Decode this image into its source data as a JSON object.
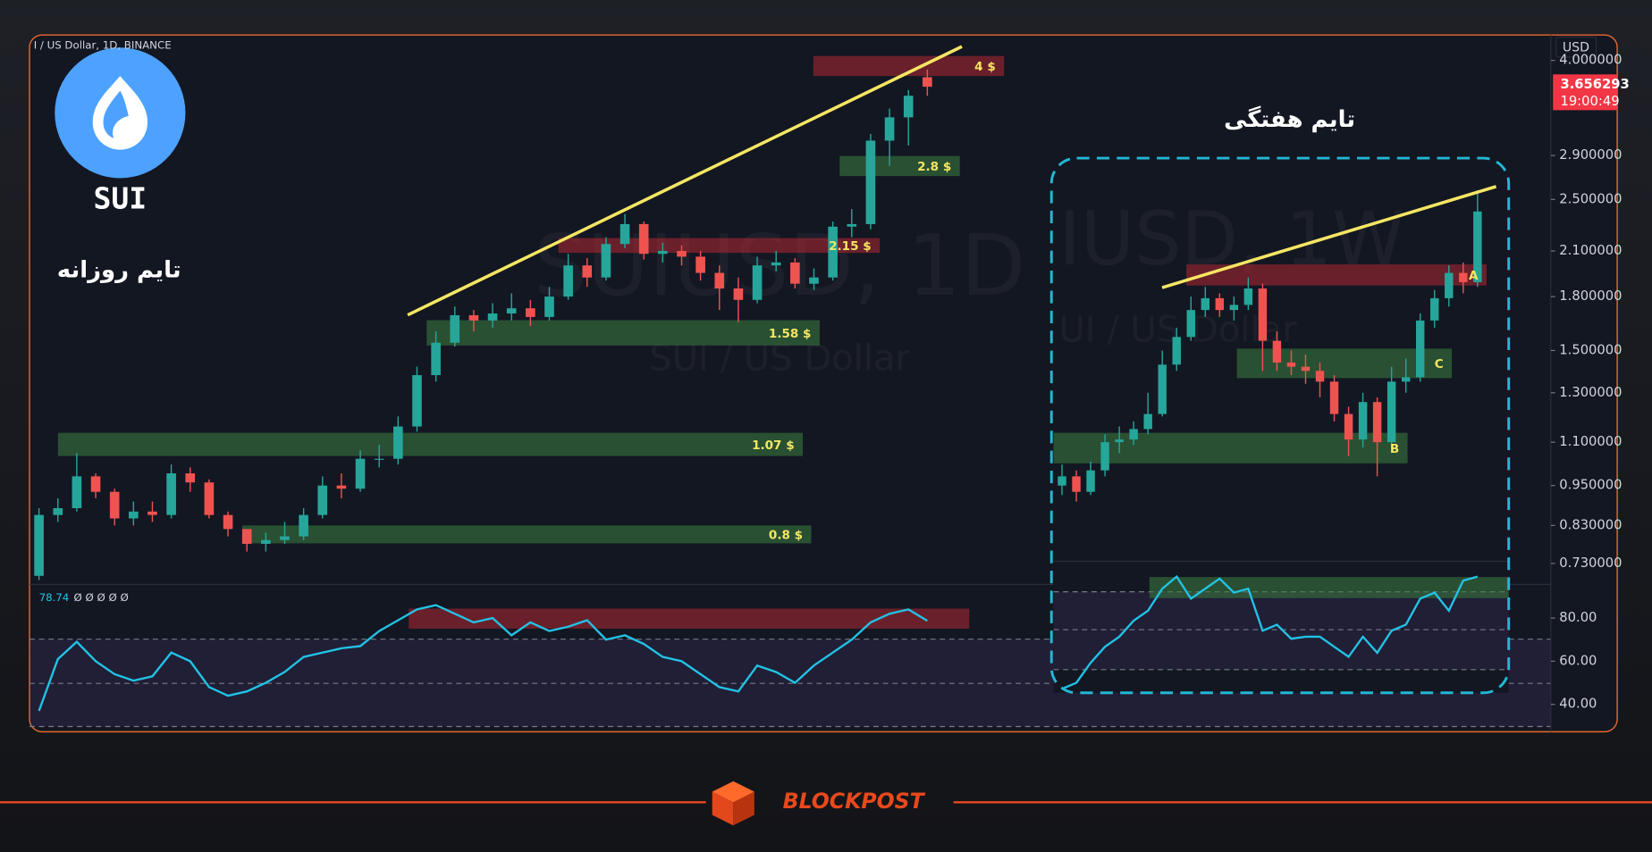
{
  "branding": {
    "coin": "SUI",
    "site": "BLOCKPOST"
  },
  "chart_data": [
    {
      "type": "candlestick",
      "title": "I / US Dollar, 1D, BINANCE",
      "label": "تایم روزانه",
      "watermark": "SUIUSD, 1D",
      "watermark_subtitle": "SUI / US Dollar",
      "currency": "USD",
      "log_scale": true,
      "ylim": [
        0.68,
        4.36
      ],
      "yticks": [
        {
          "value": 4,
          "label": "4.000000"
        },
        {
          "value": 2.9,
          "label": "2.900000"
        },
        {
          "value": 2.5,
          "label": "2.500000"
        },
        {
          "value": 2.1,
          "label": "2.100000"
        },
        {
          "value": 1.8,
          "label": "1.800000"
        },
        {
          "value": 1.5,
          "label": "1.500000"
        },
        {
          "value": 1.3,
          "label": "1.300000"
        },
        {
          "value": 1.1,
          "label": "1.100000"
        },
        {
          "value": 0.95,
          "label": "0.950000"
        },
        {
          "value": 0.83,
          "label": "0.830000"
        },
        {
          "value": 0.73,
          "label": "0.730000"
        }
      ],
      "up_color": "#26a69a",
      "down_color": "#ef5350",
      "open": [
        0.7,
        0.86,
        0.88,
        0.98,
        0.93,
        0.85,
        0.87,
        0.86,
        0.99,
        0.96,
        0.86,
        0.82,
        0.78,
        0.79,
        0.8,
        0.86,
        0.95,
        0.94,
        1.04,
        1.04,
        1.16,
        1.38,
        1.54,
        1.69,
        1.66,
        1.7,
        1.73,
        1.68,
        1.8,
        2.0,
        1.92,
        2.15,
        2.3,
        2.08,
        2.1,
        2.06,
        1.95,
        1.85,
        1.78,
        2.0,
        2.02,
        1.88,
        1.92,
        2.28,
        2.3,
        3.05,
        3.3,
        3.78
      ],
      "high": [
        0.88,
        0.91,
        1.06,
        0.99,
        0.94,
        0.9,
        0.9,
        1.02,
        1.01,
        0.97,
        0.87,
        0.82,
        0.81,
        0.84,
        0.88,
        0.98,
        0.99,
        1.07,
        1.09,
        1.2,
        1.42,
        1.6,
        1.74,
        1.72,
        1.76,
        1.82,
        1.78,
        1.86,
        2.08,
        2.05,
        2.2,
        2.38,
        2.32,
        2.16,
        2.14,
        2.1,
        2.0,
        1.92,
        2.06,
        2.1,
        2.05,
        1.98,
        2.32,
        2.42,
        3.12,
        3.4,
        3.62,
        3.88
      ],
      "low": [
        0.69,
        0.84,
        0.87,
        0.91,
        0.83,
        0.83,
        0.84,
        0.85,
        0.93,
        0.85,
        0.8,
        0.76,
        0.76,
        0.78,
        0.79,
        0.85,
        0.91,
        0.93,
        1.01,
        1.02,
        1.14,
        1.35,
        1.52,
        1.6,
        1.62,
        1.66,
        1.63,
        1.66,
        1.78,
        1.86,
        1.9,
        2.12,
        2.04,
        2.02,
        2.0,
        1.9,
        1.72,
        1.65,
        1.76,
        1.96,
        1.85,
        1.84,
        1.9,
        2.2,
        2.26,
        2.8,
        3.0,
        3.55
      ],
      "close": [
        0.86,
        0.88,
        0.98,
        0.93,
        0.85,
        0.87,
        0.86,
        0.99,
        0.96,
        0.86,
        0.82,
        0.78,
        0.79,
        0.8,
        0.86,
        0.95,
        0.94,
        1.04,
        1.04,
        1.16,
        1.38,
        1.54,
        1.69,
        1.66,
        1.7,
        1.73,
        1.68,
        1.8,
        2.0,
        1.92,
        2.15,
        2.3,
        2.08,
        2.1,
        2.06,
        1.95,
        1.85,
        1.78,
        2.0,
        2.02,
        1.88,
        1.92,
        2.28,
        2.3,
        3.05,
        3.3,
        3.55,
        3.66
      ],
      "last_price": 3.656293,
      "countdown": "19:00:49",
      "annotations": [
        "4 $",
        "2.8 $",
        "2.15 $",
        "1.58 $",
        "1.07 $",
        "0.8 $"
      ]
    },
    {
      "type": "line",
      "inputs": "Ø Ø Ø Ø Ø",
      "color": "#22c3e6",
      "ylim": [
        27.3,
        95.6
      ],
      "yticks": [
        {
          "value": 80,
          "label": "80.00"
        },
        {
          "value": 60,
          "label": "60.00"
        },
        {
          "value": 40,
          "label": "40.00"
        }
      ],
      "values": [
        37,
        61,
        69,
        60,
        54,
        51,
        53,
        64,
        60,
        48,
        44,
        46,
        50,
        55,
        62,
        64,
        66,
        67,
        74,
        79,
        84,
        86,
        82,
        78,
        80,
        72,
        78,
        74,
        76,
        79,
        70,
        72,
        68,
        62,
        60,
        54,
        48,
        46,
        58,
        55,
        50,
        58,
        64,
        70,
        78,
        82,
        84,
        78.74
      ]
    },
    {
      "type": "candlestick",
      "label": "تایم هفتگی",
      "watermark": "IUSD, 1W",
      "watermark_subtitle": "UI / US Dollar",
      "log_scale": true,
      "ylim": [
        0.68,
        4.36
      ],
      "up_color": "#26a69a",
      "down_color": "#ef5350",
      "open": [
        0.95,
        0.98,
        0.93,
        1.0,
        1.1,
        1.11,
        1.15,
        1.21,
        1.43,
        1.57,
        1.72,
        1.79,
        1.72,
        1.75,
        1.85,
        1.55,
        1.44,
        1.42,
        1.4,
        1.35,
        1.21,
        1.11,
        1.26,
        1.1,
        1.35,
        1.37,
        1.66,
        1.79,
        1.95,
        1.89
      ],
      "high": [
        1.02,
        1.0,
        1.03,
        1.13,
        1.16,
        1.18,
        1.3,
        1.5,
        1.62,
        1.8,
        1.86,
        1.82,
        1.8,
        1.92,
        1.88,
        1.6,
        1.5,
        1.48,
        1.44,
        1.38,
        1.24,
        1.3,
        1.28,
        1.42,
        1.46,
        1.7,
        1.84,
        2.0,
        2.02,
        2.58
      ],
      "low": [
        0.92,
        0.9,
        0.92,
        0.98,
        1.06,
        1.09,
        1.13,
        1.2,
        1.4,
        1.55,
        1.68,
        1.68,
        1.66,
        1.72,
        1.4,
        1.4,
        1.38,
        1.34,
        1.28,
        1.18,
        1.05,
        1.08,
        0.98,
        1.08,
        1.3,
        1.35,
        1.62,
        1.74,
        1.82,
        1.86
      ],
      "close": [
        0.98,
        0.93,
        1.0,
        1.1,
        1.11,
        1.15,
        1.21,
        1.43,
        1.57,
        1.72,
        1.79,
        1.72,
        1.75,
        1.85,
        1.55,
        1.44,
        1.42,
        1.4,
        1.35,
        1.21,
        1.11,
        1.26,
        1.1,
        1.35,
        1.37,
        1.66,
        1.79,
        1.95,
        1.89,
        2.4
      ],
      "annotations": [
        "A",
        "C",
        "B"
      ]
    },
    {
      "type": "line",
      "color": "#22c3e6",
      "ylim": [
        18,
        80
      ],
      "values": [
        20,
        23,
        33,
        41,
        46,
        54,
        59,
        70,
        76,
        65,
        70,
        75,
        68,
        70,
        49,
        52,
        45,
        46,
        46,
        41,
        36,
        46,
        38,
        49,
        52,
        65,
        68,
        59,
        74,
        76
      ]
    }
  ]
}
